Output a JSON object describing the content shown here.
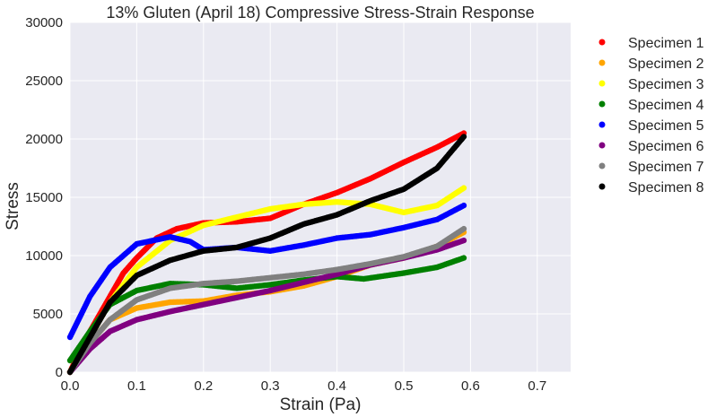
{
  "chart_data": {
    "type": "scatter",
    "title": "13% Gluten (April 18) Compressive Stress-Strain Response",
    "xlabel": "Strain (Pa)",
    "ylabel": "Stress",
    "xlim": [
      0.0,
      0.75
    ],
    "ylim": [
      0,
      30000
    ],
    "xticks": [
      "0.0",
      "0.1",
      "0.2",
      "0.3",
      "0.4",
      "0.5",
      "0.6",
      "0.7"
    ],
    "yticks": [
      "0",
      "5000",
      "10000",
      "15000",
      "20000",
      "25000",
      "30000"
    ],
    "grid": true,
    "legend_position": "outside-right",
    "series": [
      {
        "name": "Specimen 1",
        "color": "#ff0000",
        "x": [
          0.0,
          0.02,
          0.05,
          0.08,
          0.1,
          0.13,
          0.16,
          0.2,
          0.25,
          0.3,
          0.35,
          0.4,
          0.45,
          0.5,
          0.55,
          0.59
        ],
        "y": [
          0,
          2500,
          5500,
          8500,
          9800,
          11500,
          12300,
          12800,
          12900,
          13200,
          14400,
          15400,
          16600,
          18000,
          19300,
          20500
        ]
      },
      {
        "name": "Specimen 2",
        "color": "#ffa500",
        "x": [
          0.0,
          0.03,
          0.06,
          0.1,
          0.15,
          0.2,
          0.25,
          0.3,
          0.35,
          0.4,
          0.45,
          0.5,
          0.55,
          0.59
        ],
        "y": [
          0,
          2500,
          4500,
          5500,
          6000,
          6100,
          6600,
          6900,
          7400,
          8200,
          9200,
          9800,
          10800,
          12000
        ]
      },
      {
        "name": "Specimen 3",
        "color": "#ffff00",
        "x": [
          0.0,
          0.03,
          0.06,
          0.1,
          0.15,
          0.2,
          0.25,
          0.3,
          0.35,
          0.4,
          0.45,
          0.5,
          0.55,
          0.59
        ],
        "y": [
          0,
          3000,
          6000,
          9000,
          11300,
          12600,
          13300,
          14000,
          14400,
          14600,
          14400,
          13700,
          14300,
          15800
        ]
      },
      {
        "name": "Specimen 4",
        "color": "#008000",
        "x": [
          0.0,
          0.03,
          0.06,
          0.1,
          0.15,
          0.2,
          0.25,
          0.3,
          0.35,
          0.4,
          0.44,
          0.5,
          0.55,
          0.59
        ],
        "y": [
          1000,
          3500,
          5800,
          7000,
          7600,
          7500,
          7200,
          7500,
          7900,
          8200,
          8000,
          8500,
          9000,
          9800
        ]
      },
      {
        "name": "Specimen 5",
        "color": "#0000ff",
        "x": [
          0.0,
          0.03,
          0.06,
          0.1,
          0.15,
          0.18,
          0.2,
          0.25,
          0.3,
          0.35,
          0.4,
          0.45,
          0.5,
          0.55,
          0.59
        ],
        "y": [
          3000,
          6500,
          9000,
          11000,
          11600,
          11200,
          10500,
          10700,
          10400,
          10900,
          11500,
          11800,
          12400,
          13100,
          14300
        ]
      },
      {
        "name": "Specimen 6",
        "color": "#800080",
        "x": [
          0.0,
          0.03,
          0.06,
          0.1,
          0.15,
          0.2,
          0.25,
          0.3,
          0.35,
          0.4,
          0.45,
          0.5,
          0.55,
          0.59
        ],
        "y": [
          0,
          2000,
          3500,
          4500,
          5200,
          5800,
          6400,
          7000,
          7700,
          8400,
          9200,
          9800,
          10500,
          11300
        ]
      },
      {
        "name": "Specimen 7",
        "color": "#808080",
        "x": [
          0.0,
          0.03,
          0.06,
          0.1,
          0.15,
          0.2,
          0.25,
          0.3,
          0.35,
          0.4,
          0.45,
          0.5,
          0.55,
          0.59
        ],
        "y": [
          0,
          2500,
          4500,
          6200,
          7200,
          7600,
          7800,
          8100,
          8400,
          8800,
          9300,
          9900,
          10800,
          12300
        ]
      },
      {
        "name": "Specimen 8",
        "color": "#000000",
        "x": [
          0.0,
          0.03,
          0.06,
          0.1,
          0.15,
          0.2,
          0.25,
          0.3,
          0.35,
          0.4,
          0.45,
          0.5,
          0.55,
          0.59
        ],
        "y": [
          0,
          3000,
          6000,
          8300,
          9600,
          10400,
          10700,
          11500,
          12700,
          13500,
          14700,
          15700,
          17500,
          20200
        ]
      }
    ]
  }
}
